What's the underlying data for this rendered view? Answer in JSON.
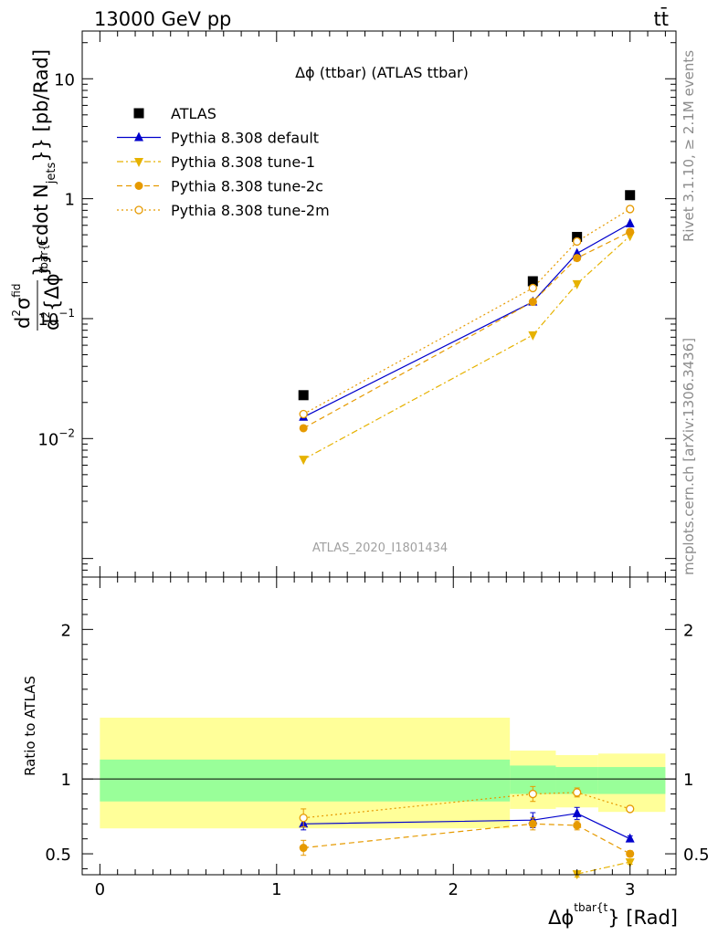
{
  "header": {
    "energy_label": "13000 GeV pp",
    "process_label": "tt̄"
  },
  "side_labels": {
    "rivet": "Rivet 3.1.10, ≥ 2.1M events",
    "site": "mcplots.cern.ch [arXiv:1306.3436]"
  },
  "chart_data": [
    {
      "type": "line",
      "panel": "main",
      "title": "Δϕ (ttbar) (ATLAS ttbar)",
      "watermark": "ATLAS_2020_I1801434",
      "ylabel": "d²σ^fid / d²{Δϕ^tbar{t}} cdot N_jets}} [pb/Rad]",
      "ylabel_parts": {
        "numerator_d": "d",
        "sup2a": "2",
        "sigma": "σ",
        "fid": "fid",
        "denominator_d": "d",
        "sup2b": "2",
        "dphi": "{Δϕ",
        "tbar": "tbar{t",
        "cdot": "}} cdot N",
        "jets": "jets",
        "units": "}} [pb/Rad]"
      },
      "yscale": "log",
      "ylim": [
        0.0007,
        25
      ],
      "xlim": [
        -0.1,
        3.26
      ],
      "y_ticks": [
        {
          "value": 10,
          "label": "10"
        },
        {
          "value": 1,
          "label": "1"
        },
        {
          "value": 0.1,
          "label": "10^-1"
        },
        {
          "value": 0.01,
          "label": "10^-2"
        }
      ],
      "legend_position": "top-left",
      "series": [
        {
          "name": "ATLAS",
          "color": "#000000",
          "marker": "square",
          "line": "none",
          "x": [
            1.152,
            2.45,
            2.7,
            3.0
          ],
          "y": [
            0.023,
            0.205,
            0.48,
            1.07
          ]
        },
        {
          "name": "Pythia 8.308 default",
          "color": "#0000cc",
          "marker": "triangle-up",
          "line": "solid",
          "x": [
            1.152,
            2.45,
            2.7,
            3.0
          ],
          "y": [
            0.0151,
            0.138,
            0.35,
            0.62
          ]
        },
        {
          "name": "Pythia 8.308 tune-1",
          "color": "#e6b200",
          "marker": "triangle-down",
          "line": "dashdot",
          "x": [
            1.152,
            2.45,
            2.7,
            3.0
          ],
          "y": [
            0.0067,
            0.073,
            0.195,
            0.49
          ]
        },
        {
          "name": "Pythia 8.308 tune-2c",
          "color": "#e69a00",
          "marker": "circle",
          "line": "dashed",
          "x": [
            1.152,
            2.45,
            2.7,
            3.0
          ],
          "y": [
            0.0122,
            0.138,
            0.32,
            0.53
          ]
        },
        {
          "name": "Pythia 8.308 tune-2m",
          "color": "#e69a00",
          "marker": "circle-open",
          "line": "dotted",
          "x": [
            1.152,
            2.45,
            2.7,
            3.0
          ],
          "y": [
            0.016,
            0.18,
            0.44,
            0.82
          ]
        }
      ]
    },
    {
      "type": "line",
      "panel": "ratio",
      "ylabel": "Ratio to ATLAS",
      "xlabel": "Δϕ^tbar{t}} [Rad]",
      "xlabel_parts": {
        "main": "Δϕ",
        "sup": "tbar{t",
        "tail": "} [Rad]"
      },
      "ylim": [
        0.36,
        2.35
      ],
      "xlim": [
        -0.1,
        3.26
      ],
      "x_ticks": [
        0,
        1,
        2,
        3
      ],
      "y_ticks": [
        0.5,
        1,
        2
      ],
      "reference_line": 1,
      "uncertainty_bands": [
        {
          "x0": 0.0,
          "x1": 2.32,
          "yellow": [
            0.67,
            1.41
          ],
          "green": [
            0.85,
            1.13
          ]
        },
        {
          "x0": 2.32,
          "x1": 2.58,
          "yellow": [
            0.8,
            1.19
          ],
          "green": [
            0.9,
            1.09
          ]
        },
        {
          "x0": 2.58,
          "x1": 2.82,
          "yellow": [
            0.81,
            1.16
          ],
          "green": [
            0.9,
            1.08
          ]
        },
        {
          "x0": 2.82,
          "x1": 3.2,
          "yellow": [
            0.78,
            1.17
          ],
          "green": [
            0.9,
            1.08
          ]
        }
      ],
      "series": [
        {
          "name": "Pythia 8.308 default",
          "x": [
            1.152,
            2.45,
            2.7,
            3.0
          ],
          "y": [
            0.7,
            0.725,
            0.77,
            0.6
          ],
          "err": [
            0.04,
            0.05,
            0.04,
            0.02
          ]
        },
        {
          "name": "Pythia 8.308 tune-1",
          "x": [
            2.7,
            3.0
          ],
          "y": [
            0.365,
            0.445
          ],
          "err": [
            0.02,
            0.015
          ]
        },
        {
          "name": "Pythia 8.308 tune-2c",
          "x": [
            1.152,
            2.45,
            2.7,
            3.0
          ],
          "y": [
            0.54,
            0.7,
            0.69,
            0.5
          ],
          "err": [
            0.05,
            0.04,
            0.03,
            0.02
          ]
        },
        {
          "name": "Pythia 8.308 tune-2m",
          "x": [
            1.152,
            2.45,
            2.7,
            3.0
          ],
          "y": [
            0.74,
            0.9,
            0.91,
            0.8
          ],
          "err": [
            0.06,
            0.05,
            0.03,
            0.015
          ]
        }
      ]
    }
  ]
}
